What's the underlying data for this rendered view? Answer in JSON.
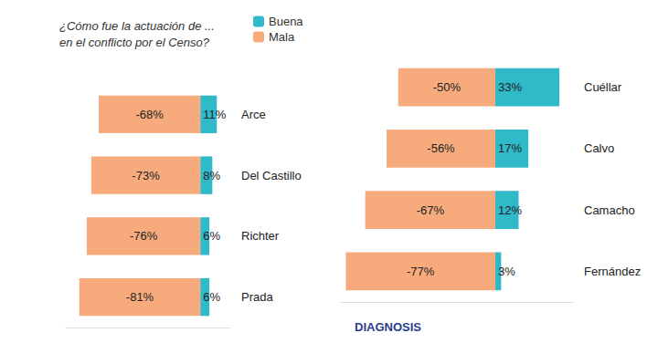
{
  "chart_data": [
    {
      "type": "bar",
      "orientation": "horizontal",
      "stacked": true,
      "data_labels": true,
      "tick_labels": "y",
      "grid": false,
      "legend": "top-left",
      "title": "¿Cómo fue la actuación de ... en el conflicto por el Censo?",
      "categories": [
        "Arce",
        "Del Castillo",
        "Richter",
        "Prada"
      ],
      "xlim": [
        -90,
        20
      ],
      "series": [
        {
          "name": "Mala",
          "color": "#f7ab7c",
          "values": [
            -68,
            -73,
            -76,
            -81
          ],
          "value_labels": [
            "-68%",
            "-73%",
            "-76%",
            "-81%"
          ]
        },
        {
          "name": "Buena",
          "color": "#2fb9c9",
          "values": [
            11,
            8,
            6,
            6
          ],
          "value_labels": [
            "11%",
            "8%",
            "6%",
            "6%"
          ]
        }
      ]
    },
    {
      "type": "bar",
      "orientation": "horizontal",
      "stacked": true,
      "data_labels": true,
      "tick_labels": "y",
      "grid": false,
      "annotation": "DIAGNOSIS",
      "categories": [
        "Cuéllar",
        "Calvo",
        "Camacho",
        "Fernández"
      ],
      "xlim": [
        -80,
        40
      ],
      "series": [
        {
          "name": "Mala",
          "color": "#f7ab7c",
          "values": [
            -50,
            -56,
            -67,
            -77
          ],
          "value_labels": [
            "-50%",
            "-56%",
            "-67%",
            "-77%"
          ]
        },
        {
          "name": "Buena",
          "color": "#2fb9c9",
          "values": [
            33,
            17,
            12,
            3
          ],
          "value_labels": [
            "33%",
            "17%",
            "12%",
            "3%"
          ]
        }
      ]
    }
  ]
}
